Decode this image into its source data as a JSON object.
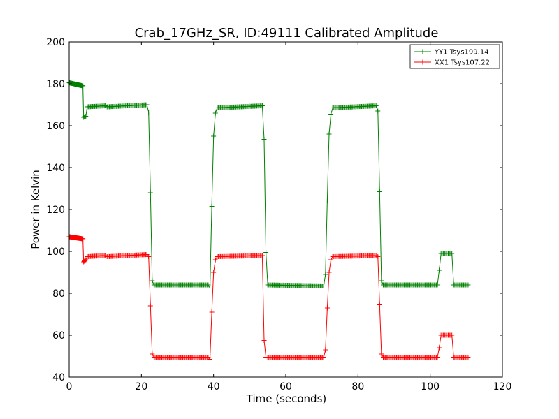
{
  "chart_data": {
    "type": "line",
    "title": "Crab_17GHz_SR, ID:49111 Calibrated Amplitude",
    "xlabel": "Time (seconds)",
    "ylabel": "Power in Kelvin",
    "xlim": [
      0,
      120
    ],
    "ylim": [
      40,
      200
    ],
    "xticks": [
      0,
      20,
      40,
      60,
      80,
      100,
      120
    ],
    "yticks": [
      40,
      60,
      80,
      100,
      120,
      140,
      160,
      180,
      200
    ],
    "grid": false,
    "legend_position": "top-right",
    "marker": "+",
    "series": [
      {
        "name": "YY1 Tsys199.14",
        "color": "#008000",
        "segments": [
          [
            0,
            180.5,
            3.8,
            179.0,
            40
          ],
          [
            4.0,
            164.0,
            4.6,
            164.5,
            4
          ],
          [
            5.0,
            169.0,
            10.0,
            169.5,
            18
          ],
          [
            10.5,
            169.0,
            21.5,
            170.0,
            36
          ],
          [
            22.0,
            166.5,
            22.0,
            166.5,
            1
          ],
          [
            22.5,
            128.0,
            22.5,
            128.0,
            1
          ],
          [
            23.0,
            86.0,
            23.0,
            86.0,
            1
          ],
          [
            23.5,
            84.0,
            38.5,
            84.0,
            50
          ],
          [
            39.0,
            82.5,
            39.0,
            82.5,
            1
          ],
          [
            39.5,
            121.5,
            39.5,
            121.5,
            1
          ],
          [
            40.0,
            155.0,
            40.0,
            155.0,
            1
          ],
          [
            40.5,
            166.0,
            40.5,
            166.0,
            1
          ],
          [
            41.0,
            168.5,
            53.5,
            169.5,
            42
          ],
          [
            54.0,
            153.5,
            54.0,
            153.5,
            1
          ],
          [
            54.5,
            99.5,
            54.5,
            99.5,
            1
          ],
          [
            55.0,
            84.0,
            70.5,
            83.5,
            52
          ],
          [
            71.0,
            89.0,
            71.0,
            89.0,
            1
          ],
          [
            71.5,
            124.5,
            71.5,
            124.5,
            1
          ],
          [
            72.0,
            156.0,
            72.0,
            156.0,
            1
          ],
          [
            72.5,
            165.5,
            72.5,
            165.5,
            1
          ],
          [
            73.0,
            168.5,
            85.0,
            169.5,
            40
          ],
          [
            85.5,
            167.0,
            85.5,
            167.0,
            1
          ],
          [
            86.0,
            128.5,
            86.0,
            128.5,
            1
          ],
          [
            86.5,
            86.0,
            86.5,
            86.0,
            1
          ],
          [
            87.0,
            84.0,
            102.0,
            84.0,
            50
          ],
          [
            102.5,
            91.0,
            102.5,
            91.0,
            1
          ],
          [
            103.0,
            99.0,
            106.0,
            99.0,
            10
          ],
          [
            106.5,
            84.0,
            110.5,
            84.0,
            14
          ]
        ]
      },
      {
        "name": "XX1 Tsys107.22",
        "color": "#ff0000",
        "segments": [
          [
            0,
            107.0,
            3.8,
            106.0,
            40
          ],
          [
            4.0,
            95.0,
            4.6,
            96.0,
            4
          ],
          [
            5.0,
            97.5,
            10.0,
            98.0,
            18
          ],
          [
            10.5,
            97.5,
            21.5,
            98.5,
            36
          ],
          [
            22.0,
            97.5,
            22.0,
            97.5,
            1
          ],
          [
            22.5,
            74.0,
            22.5,
            74.0,
            1
          ],
          [
            23.0,
            51.0,
            23.0,
            51.0,
            1
          ],
          [
            23.5,
            49.5,
            38.5,
            49.5,
            50
          ],
          [
            39.0,
            48.5,
            39.0,
            48.5,
            1
          ],
          [
            39.5,
            71.0,
            39.5,
            71.0,
            1
          ],
          [
            40.0,
            90.0,
            40.0,
            90.0,
            1
          ],
          [
            40.5,
            96.0,
            40.5,
            96.0,
            1
          ],
          [
            41.0,
            97.5,
            53.5,
            98.0,
            42
          ],
          [
            54.0,
            57.5,
            54.0,
            57.5,
            1
          ],
          [
            54.5,
            49.5,
            54.5,
            49.5,
            1
          ],
          [
            55.0,
            49.5,
            70.5,
            49.5,
            52
          ],
          [
            71.0,
            53.0,
            71.0,
            53.0,
            1
          ],
          [
            71.5,
            73.0,
            71.5,
            73.0,
            1
          ],
          [
            72.0,
            90.0,
            72.0,
            90.0,
            1
          ],
          [
            72.5,
            96.0,
            72.5,
            96.0,
            1
          ],
          [
            73.0,
            97.5,
            85.0,
            98.0,
            40
          ],
          [
            85.5,
            97.5,
            85.5,
            97.5,
            1
          ],
          [
            86.0,
            74.5,
            86.0,
            74.5,
            1
          ],
          [
            86.5,
            51.0,
            86.5,
            51.0,
            1
          ],
          [
            87.0,
            49.5,
            102.0,
            49.5,
            50
          ],
          [
            102.5,
            54.0,
            102.5,
            54.0,
            1
          ],
          [
            103.0,
            60.0,
            106.0,
            60.0,
            10
          ],
          [
            106.5,
            49.5,
            110.5,
            49.5,
            14
          ]
        ]
      }
    ]
  }
}
